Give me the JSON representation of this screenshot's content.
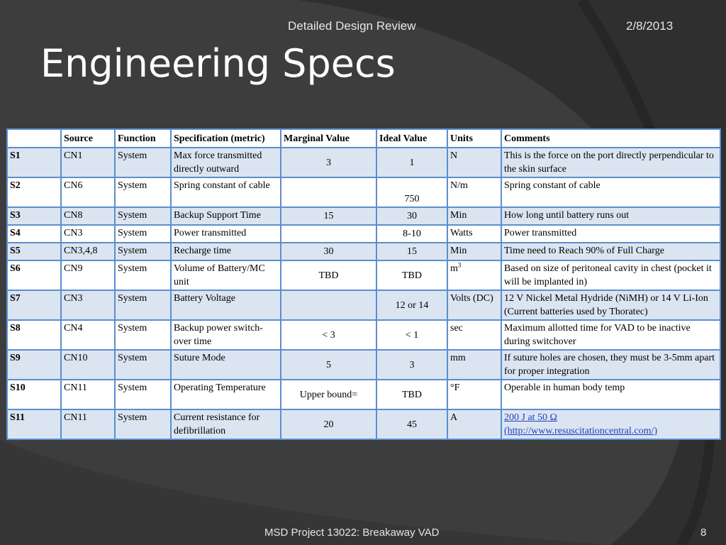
{
  "header": {
    "title": "Detailed Design Review",
    "date": "2/8/2013"
  },
  "slide_title": "Engineering Specs",
  "table": {
    "columns": [
      "",
      "Source",
      "Function",
      "Specification (metric)",
      "Marginal Value",
      "Ideal Value",
      "Units",
      "Comments"
    ],
    "rows": [
      {
        "id": "S1",
        "source": "CN1",
        "function": "System",
        "spec": "Max force transmitted directly outward",
        "marginal": "3",
        "ideal": "1",
        "units": "N",
        "comments": "This is the force on the port directly perpendicular to the skin surface"
      },
      {
        "id": "S2",
        "source": "CN6",
        "function": "System",
        "spec": "Spring constant of cable",
        "marginal": "",
        "ideal": "750",
        "units": "N/m",
        "comments": "Spring constant of cable"
      },
      {
        "id": "S3",
        "source": "CN8",
        "function": "System",
        "spec": "Backup Support Time",
        "marginal": "15",
        "ideal": "30",
        "units": "Min",
        "comments": "How long until battery runs out"
      },
      {
        "id": "S4",
        "source": "CN3",
        "function": "System",
        "spec": "Power transmitted",
        "marginal": "",
        "ideal": "8-10",
        "units": "Watts",
        "comments": "Power transmitted"
      },
      {
        "id": "S5",
        "source": "CN3,4,8",
        "function": "System",
        "spec": "Recharge time",
        "marginal": "30",
        "ideal": "15",
        "units": "Min",
        "comments": "Time need to Reach 90% of Full Charge"
      },
      {
        "id": "S6",
        "source": "CN9",
        "function": "System",
        "spec": "Volume of Battery/MC unit",
        "marginal": "TBD",
        "ideal": "TBD",
        "units": "m",
        "units_sup": "3",
        "comments": "Based on size of peritoneal cavity in chest (pocket it will be implanted in)"
      },
      {
        "id": "S7",
        "source": "CN3",
        "function": "System",
        "spec": "Battery Voltage",
        "marginal": "",
        "ideal": "12 or 14",
        "units": "Volts (DC)",
        "comments": "12 V Nickel Metal Hydride (NiMH) or 14 V Li-Ion (Current batteries used by Thoratec)"
      },
      {
        "id": "S8",
        "source": "CN4",
        "function": "System",
        "spec": "Backup power switch-over time",
        "marginal": "< 3",
        "ideal": "< 1",
        "units": "sec",
        "comments": "Maximum allotted time for VAD to be inactive during switchover"
      },
      {
        "id": "S9",
        "source": "CN10",
        "function": "System",
        "spec": "Suture Mode",
        "marginal": "5",
        "ideal": "3",
        "units": "mm",
        "comments": "If suture holes are chosen, they must be 3-5mm apart for proper integration"
      },
      {
        "id": "S10",
        "source": "CN11",
        "function": "System",
        "spec": "Operating Temperature",
        "marginal": "Upper bound=",
        "ideal": "TBD",
        "units": "°F",
        "comments": "Operable in human body temp"
      },
      {
        "id": "S11",
        "source": "CN11",
        "function": "System",
        "spec": "Current resistance for defibrillation",
        "marginal": "20",
        "ideal": "45",
        "units": "A",
        "comments_link_1": "200 J at 50 Ω",
        "comments_link_2": "(http://www.resuscitationcentral.com/)"
      }
    ]
  },
  "footer": {
    "project": "MSD Project 13022: Breakaway VAD",
    "page": "8"
  }
}
